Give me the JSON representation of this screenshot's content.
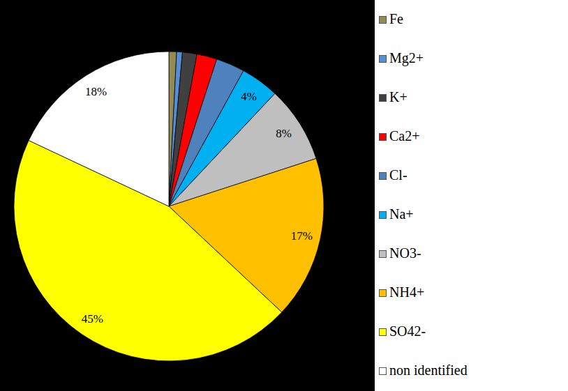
{
  "chart_data": {
    "type": "pie",
    "categories": [
      "Fe",
      "Mg2+",
      "K+",
      "Ca2+",
      "Cl-",
      "Na+",
      "NO3-",
      "NH4+",
      "SO42-",
      "non identified"
    ],
    "values": [
      0.8,
      0.6,
      1.5,
      2.1,
      3.0,
      4,
      8,
      17,
      45,
      18
    ],
    "colors": [
      "#948a54",
      "#558ed5",
      "#404040",
      "#ff0000",
      "#4f81bd",
      "#00b0f0",
      "#bfbfbf",
      "#ffc000",
      "#ffff00",
      "#ffffff"
    ],
    "data_labels": true,
    "value_labels": [
      null,
      null,
      null,
      null,
      null,
      "4%",
      "8%",
      "17%",
      "45%",
      "18%"
    ],
    "legend": "right"
  }
}
